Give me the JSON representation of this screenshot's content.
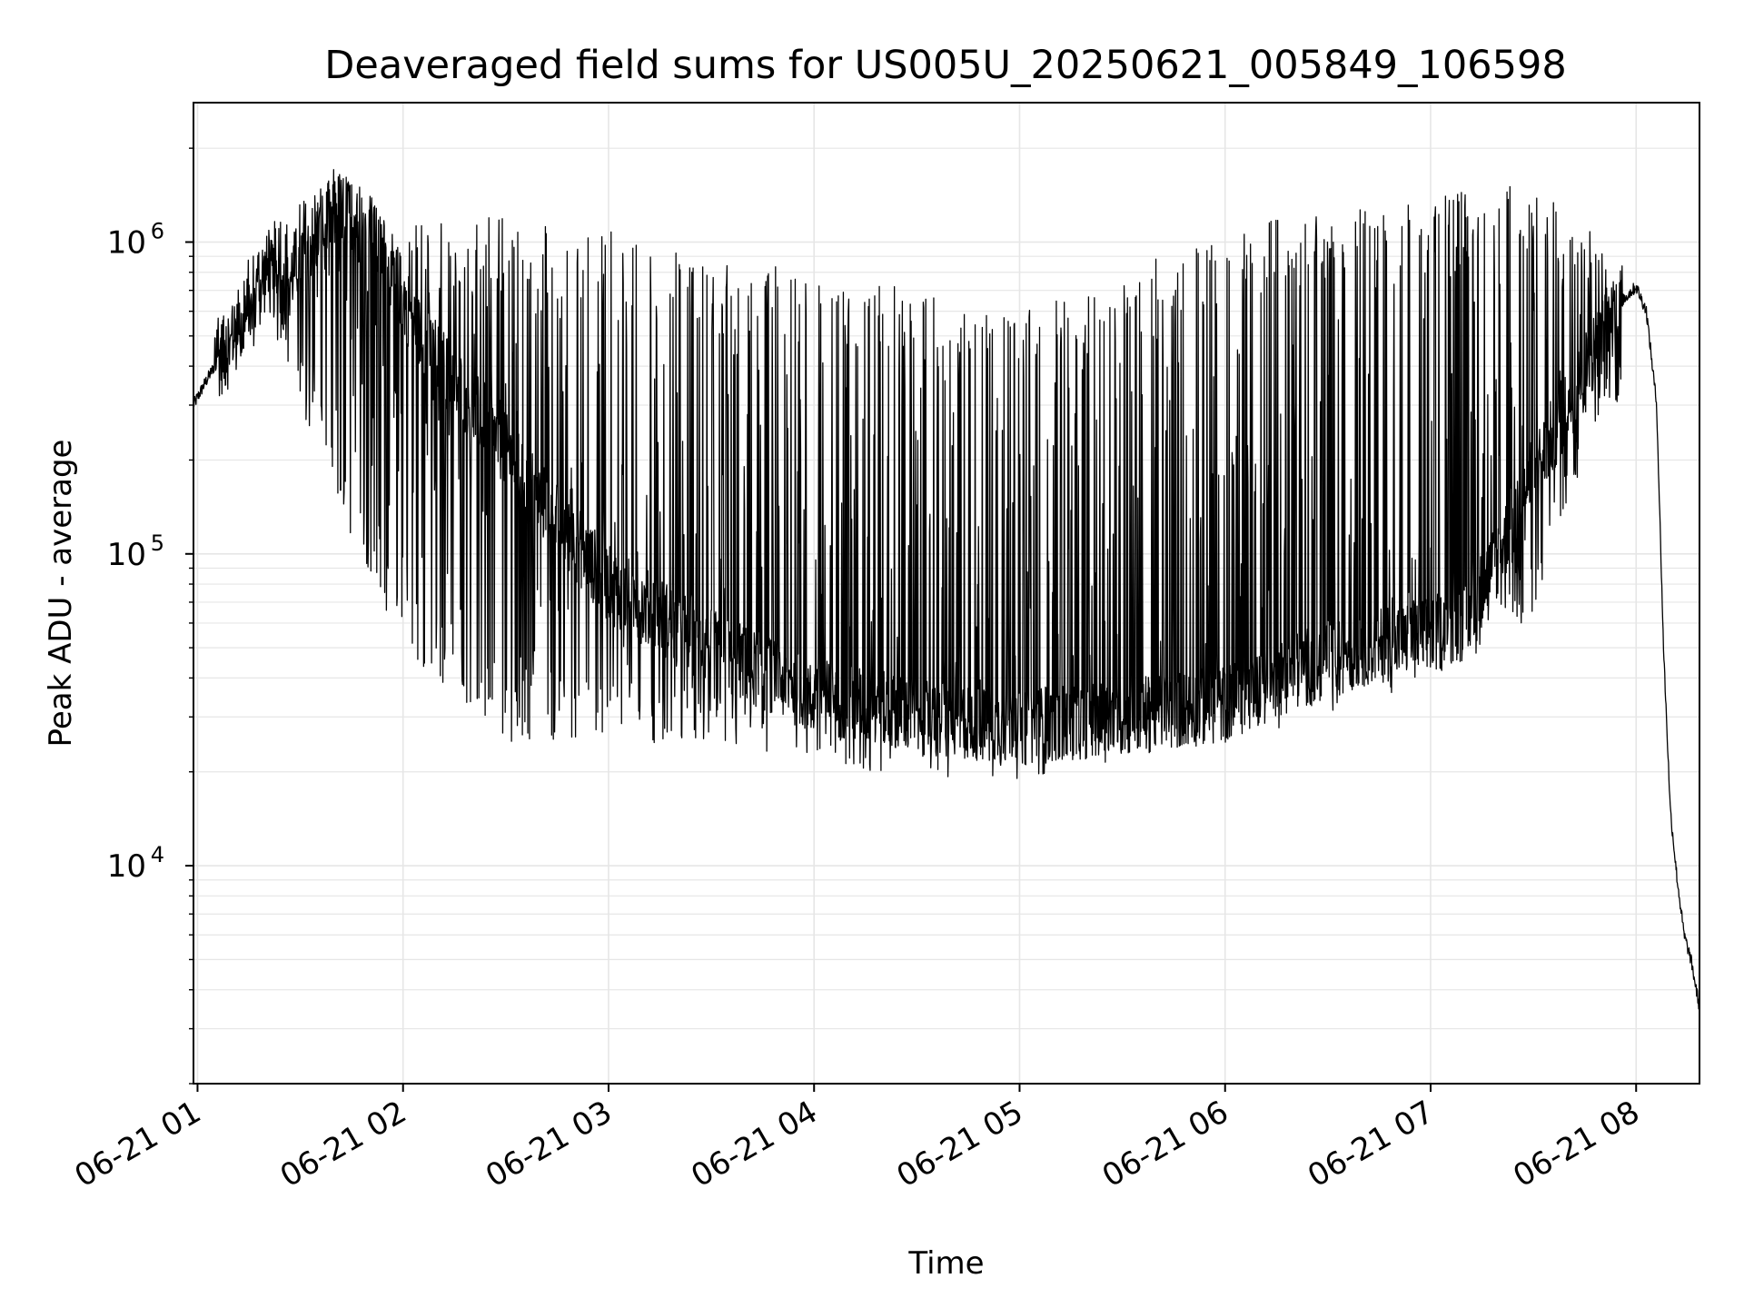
{
  "chart_data": {
    "type": "line",
    "title": "Deaveraged field sums for US005U_20250621_005849_106598",
    "xlabel": "Time",
    "ylabel": "Peak ADU - average",
    "yscale": "log",
    "xlim": [
      "2025-06-21T00:58:49",
      "2025-06-21T08:18:30"
    ],
    "ylim": [
      2000,
      2800000
    ],
    "grid": true,
    "line_color": "#000000",
    "grid_color": "#e6e6e6",
    "x_ticks": [
      {
        "time": "2025-06-21T01:00:00",
        "label": "06-21 01"
      },
      {
        "time": "2025-06-21T02:00:00",
        "label": "06-21 02"
      },
      {
        "time": "2025-06-21T03:00:00",
        "label": "06-21 03"
      },
      {
        "time": "2025-06-21T04:00:00",
        "label": "06-21 04"
      },
      {
        "time": "2025-06-21T05:00:00",
        "label": "06-21 05"
      },
      {
        "time": "2025-06-21T06:00:00",
        "label": "06-21 06"
      },
      {
        "time": "2025-06-21T07:00:00",
        "label": "06-21 07"
      },
      {
        "time": "2025-06-21T08:00:00",
        "label": "06-21 08"
      }
    ],
    "y_ticks": [
      {
        "value": 10000,
        "base": "10",
        "exp": "4"
      },
      {
        "value": 100000,
        "base": "10",
        "exp": "5"
      },
      {
        "value": 1000000,
        "base": "10",
        "exp": "6"
      }
    ],
    "series": [
      {
        "baseline": {
          "x": [
            "2025-06-21T00:58:49",
            "2025-06-21T01:02:00",
            "2025-06-21T01:06:00",
            "2025-06-21T01:10:00",
            "2025-06-21T01:15:00",
            "2025-06-21T01:20:00",
            "2025-06-21T01:25:00",
            "2025-06-21T01:30:00",
            "2025-06-21T01:36:00",
            "2025-06-21T01:42:00",
            "2025-06-21T01:48:00",
            "2025-06-21T01:55:00",
            "2025-06-21T02:05:00",
            "2025-06-21T02:20:00",
            "2025-06-21T02:40:00",
            "2025-06-21T03:00:00",
            "2025-06-21T03:30:00",
            "2025-06-21T04:00:00",
            "2025-06-21T04:30:00",
            "2025-06-21T05:00:00",
            "2025-06-21T05:30:00",
            "2025-06-21T06:00:00",
            "2025-06-21T06:20:00",
            "2025-06-21T06:40:00",
            "2025-06-21T07:00:00",
            "2025-06-21T07:10:00",
            "2025-06-21T07:20:00",
            "2025-06-21T07:30:00",
            "2025-06-21T07:40:00",
            "2025-06-21T07:50:00",
            "2025-06-21T07:56:00",
            "2025-06-21T08:00:00",
            "2025-06-21T08:03:00",
            "2025-06-21T08:06:00",
            "2025-06-21T08:08:00",
            "2025-06-21T08:10:00",
            "2025-06-21T08:12:00",
            "2025-06-21T08:14:00",
            "2025-06-21T08:16:00",
            "2025-06-21T08:18:30"
          ],
          "y": [
            300000,
            350000,
            420000,
            460000,
            550000,
            800000,
            700000,
            900000,
            1100000,
            1300000,
            1100000,
            900000,
            500000,
            300000,
            150000,
            80000,
            50000,
            35000,
            30000,
            28000,
            30000,
            33000,
            42000,
            50000,
            55000,
            60000,
            100000,
            180000,
            300000,
            500000,
            650000,
            720000,
            600000,
            300000,
            50000,
            15000,
            9000,
            6000,
            5000,
            3500
          ]
        },
        "spike_profile": {
          "x": [
            "2025-06-21T01:00:00",
            "2025-06-21T01:20:00",
            "2025-06-21T01:40:00",
            "2025-06-21T02:00:00",
            "2025-06-21T02:30:00",
            "2025-06-21T03:00:00",
            "2025-06-21T03:30:00",
            "2025-06-21T04:00:00",
            "2025-06-21T04:30:00",
            "2025-06-21T05:00:00",
            "2025-06-21T05:30:00",
            "2025-06-21T06:00:00",
            "2025-06-21T06:30:00",
            "2025-06-21T07:00:00",
            "2025-06-21T07:30:00",
            "2025-06-21T07:50:00"
          ],
          "high": [
            500000,
            1100000,
            1800000,
            1200000,
            1200000,
            1100000,
            900000,
            800000,
            700000,
            600000,
            800000,
            1100000,
            1300000,
            1400000,
            1600000,
            1000000
          ],
          "low": [
            300000,
            600000,
            150000,
            50000,
            25000,
            25000,
            24000,
            22000,
            18000,
            19000,
            22000,
            25000,
            30000,
            40000,
            60000,
            300000
          ]
        }
      }
    ]
  }
}
